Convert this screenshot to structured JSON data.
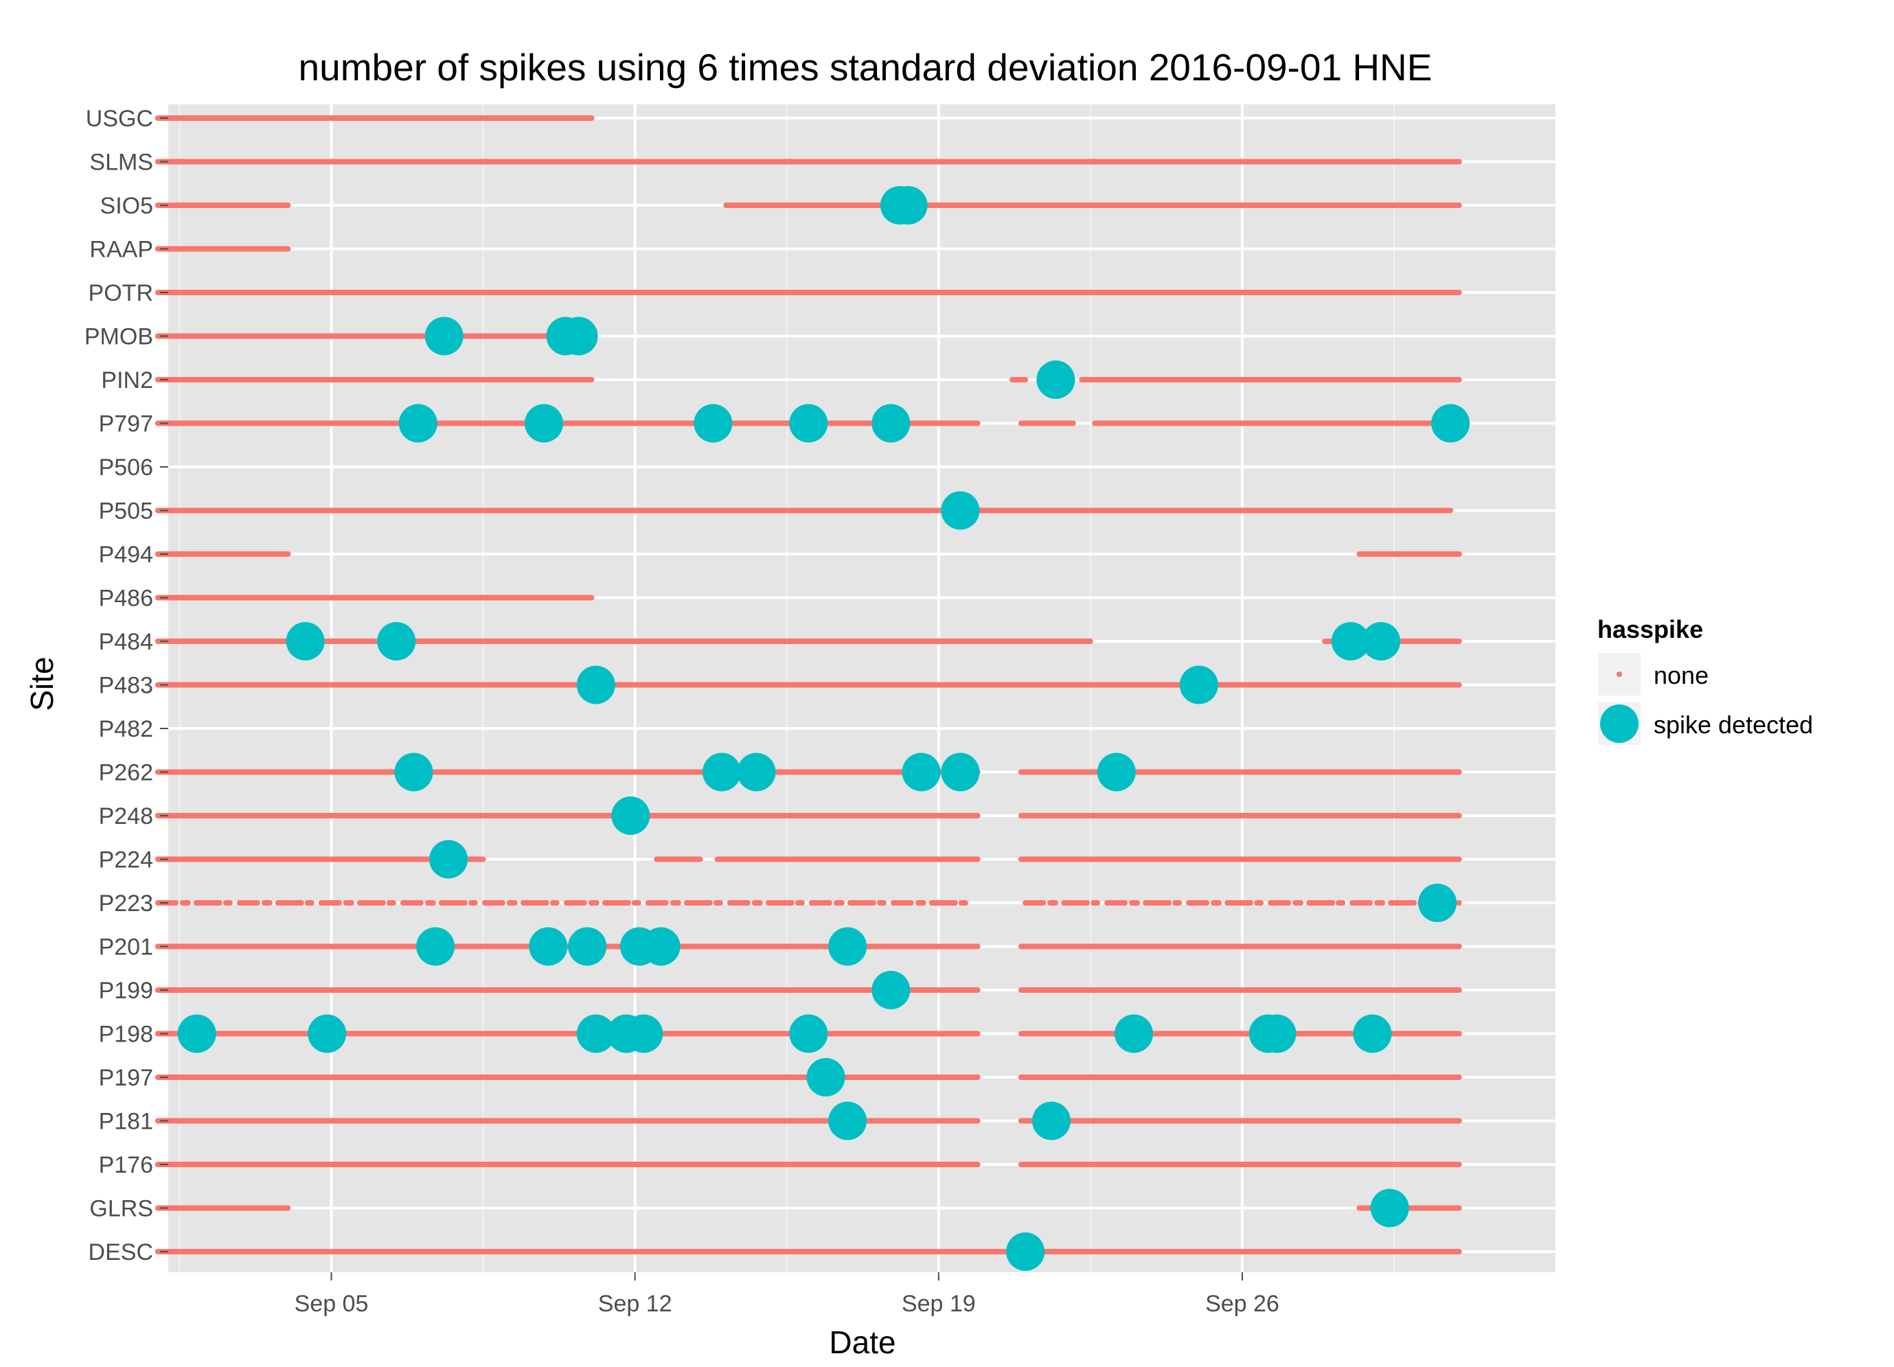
{
  "chart_data": {
    "type": "scatter",
    "title": "number of spikes using  6 times standard deviation 2016-09-01 HNE",
    "xlabel": "Date",
    "ylabel": "Site",
    "xlim": [
      0.24,
      32.22
    ],
    "x_start_date": "2016-09-01",
    "x_ticks": [
      {
        "day": 4,
        "label": "Sep 05"
      },
      {
        "day": 11,
        "label": "Sep 12"
      },
      {
        "day": 18,
        "label": "Sep 19"
      },
      {
        "day": 25,
        "label": "Sep 26"
      }
    ],
    "x_minor_ticks": [
      0.5,
      7.5,
      14.5,
      21.5,
      28.5
    ],
    "sites": [
      "USGC",
      "SLMS",
      "SIO5",
      "RAAP",
      "POTR",
      "PMOB",
      "PIN2",
      "P797",
      "P506",
      "P505",
      "P494",
      "P486",
      "P484",
      "P483",
      "P482",
      "P262",
      "P248",
      "P224",
      "P223",
      "P201",
      "P199",
      "P198",
      "P197",
      "P181",
      "P176",
      "GLRS",
      "DESC"
    ],
    "legend": {
      "title": "hasspike",
      "entries": [
        {
          "label": "none",
          "color": "#F8766D"
        },
        {
          "label": "spike detected",
          "color": "#00BFC4"
        }
      ]
    },
    "series": [
      {
        "name": "none",
        "description": "data coverage per site, units of days since 2016-09-01",
        "segments": {
          "USGC": [
            [
              0,
              10
            ]
          ],
          "SLMS": [
            [
              0,
              30
            ]
          ],
          "SIO5": [
            [
              0,
              3
            ],
            [
              13.1,
              30
            ]
          ],
          "RAAP": [
            [
              0,
              3
            ]
          ],
          "POTR": [
            [
              0,
              30
            ]
          ],
          "PMOB": [
            [
              0,
              9.2
            ]
          ],
          "PIN2": [
            [
              0,
              10
            ],
            [
              19.7,
              20
            ],
            [
              21.3,
              30
            ]
          ],
          "P797": [
            [
              0,
              18.9
            ],
            [
              19.9,
              21.1
            ],
            [
              21.6,
              30
            ]
          ],
          "P506": [],
          "P505": [
            [
              0,
              29.8
            ]
          ],
          "P494": [
            [
              0,
              3
            ],
            [
              27.7,
              30
            ]
          ],
          "P486": [
            [
              0,
              10
            ]
          ],
          "P484": [
            [
              0,
              21.5
            ],
            [
              26.9,
              30
            ]
          ],
          "P483": [
            [
              0,
              30
            ]
          ],
          "P482": [],
          "P262": [
            [
              0,
              18.9
            ],
            [
              19.9,
              30
            ]
          ],
          "P248": [
            [
              0,
              18.9
            ],
            [
              19.9,
              30
            ]
          ],
          "P224": [
            [
              0,
              7.5
            ],
            [
              11.5,
              12.5
            ],
            [
              12.9,
              18.9
            ],
            [
              19.9,
              30
            ]
          ],
          "P223": [
            [
              0,
              18.8
            ],
            [
              20,
              30
            ]
          ],
          "P201": [
            [
              0,
              18.9
            ],
            [
              19.9,
              30
            ]
          ],
          "P199": [
            [
              0,
              18.9
            ],
            [
              19.9,
              30
            ]
          ],
          "P198": [
            [
              0,
              18.9
            ],
            [
              19.9,
              30
            ]
          ],
          "P197": [
            [
              0,
              18.9
            ],
            [
              19.9,
              30
            ]
          ],
          "P181": [
            [
              0,
              18.9
            ],
            [
              19.9,
              30
            ]
          ],
          "P176": [
            [
              0,
              18.9
            ],
            [
              19.9,
              30
            ]
          ],
          "GLRS": [
            [
              0,
              3
            ],
            [
              27.7,
              30
            ]
          ],
          "DESC": [
            [
              0,
              30
            ]
          ]
        }
      },
      {
        "name": "spike detected",
        "points": [
          {
            "site": "SIO5",
            "day": 17.1
          },
          {
            "site": "SIO5",
            "day": 17.3
          },
          {
            "site": "PMOB",
            "day": 6.6
          },
          {
            "site": "PMOB",
            "day": 9.4
          },
          {
            "site": "PMOB",
            "day": 9.7
          },
          {
            "site": "PIN2",
            "day": 20.7
          },
          {
            "site": "P797",
            "day": 6.0
          },
          {
            "site": "P797",
            "day": 8.9
          },
          {
            "site": "P797",
            "day": 12.8
          },
          {
            "site": "P797",
            "day": 15.0
          },
          {
            "site": "P797",
            "day": 16.9
          },
          {
            "site": "P797",
            "day": 29.8
          },
          {
            "site": "P505",
            "day": 18.5
          },
          {
            "site": "P484",
            "day": 3.4
          },
          {
            "site": "P484",
            "day": 5.5
          },
          {
            "site": "P484",
            "day": 27.5
          },
          {
            "site": "P484",
            "day": 28.2
          },
          {
            "site": "P483",
            "day": 10.1
          },
          {
            "site": "P483",
            "day": 24.0
          },
          {
            "site": "P262",
            "day": 5.9
          },
          {
            "site": "P262",
            "day": 13.0
          },
          {
            "site": "P262",
            "day": 13.8
          },
          {
            "site": "P262",
            "day": 17.6
          },
          {
            "site": "P262",
            "day": 18.5
          },
          {
            "site": "P262",
            "day": 22.1
          },
          {
            "site": "P248",
            "day": 10.9
          },
          {
            "site": "P224",
            "day": 6.7
          },
          {
            "site": "P223",
            "day": 29.5
          },
          {
            "site": "P201",
            "day": 6.4
          },
          {
            "site": "P201",
            "day": 9.0
          },
          {
            "site": "P201",
            "day": 9.9
          },
          {
            "site": "P201",
            "day": 11.1
          },
          {
            "site": "P201",
            "day": 11.6
          },
          {
            "site": "P201",
            "day": 15.9
          },
          {
            "site": "P199",
            "day": 16.9
          },
          {
            "site": "P198",
            "day": 0.9
          },
          {
            "site": "P198",
            "day": 3.9
          },
          {
            "site": "P198",
            "day": 10.1
          },
          {
            "site": "P198",
            "day": 10.8
          },
          {
            "site": "P198",
            "day": 11.2
          },
          {
            "site": "P198",
            "day": 15.0
          },
          {
            "site": "P198",
            "day": 22.5
          },
          {
            "site": "P198",
            "day": 25.6
          },
          {
            "site": "P198",
            "day": 25.8
          },
          {
            "site": "P198",
            "day": 28.0
          },
          {
            "site": "P197",
            "day": 15.4
          },
          {
            "site": "P181",
            "day": 15.9
          },
          {
            "site": "P181",
            "day": 20.6
          },
          {
            "site": "GLRS",
            "day": 28.4
          },
          {
            "site": "DESC",
            "day": 20.0
          }
        ]
      }
    ]
  }
}
